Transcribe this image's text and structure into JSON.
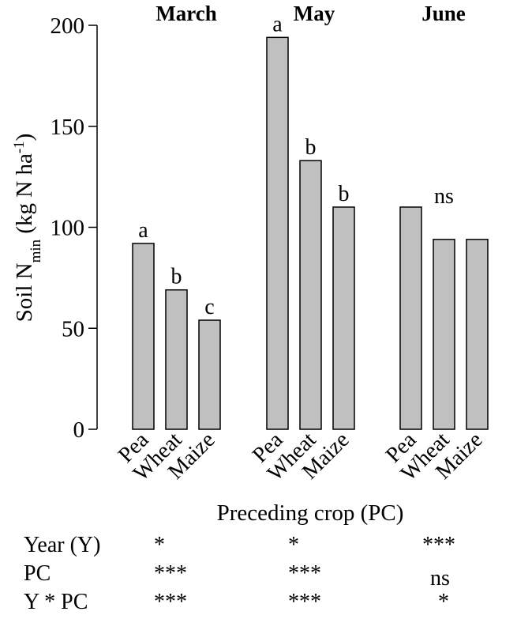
{
  "chart_data": {
    "type": "bar",
    "ylabel": "Soil N",
    "ylabel_sub": "min",
    "ylabel_unit_start": " (kg N ha",
    "ylabel_unit_sup": "-1",
    "ylabel_unit_end": ")",
    "xlabel": "Preceding crop (PC)",
    "ylim": [
      0,
      200
    ],
    "yticks": [
      0,
      50,
      100,
      150,
      200
    ],
    "groups": [
      {
        "title": "March",
        "bars": [
          {
            "crop": "Pea",
            "value": 92,
            "letter": "a"
          },
          {
            "crop": "Wheat",
            "value": 69,
            "letter": "b"
          },
          {
            "crop": "Maize",
            "value": 54,
            "letter": "c"
          }
        ]
      },
      {
        "title": "May",
        "bars": [
          {
            "crop": "Pea",
            "value": 194,
            "letter": "a"
          },
          {
            "crop": "Wheat",
            "value": 133,
            "letter": "b"
          },
          {
            "crop": "Maize",
            "value": 110,
            "letter": "b"
          }
        ]
      },
      {
        "title": "June",
        "group_label": "ns",
        "bars": [
          {
            "crop": "Pea",
            "value": 110,
            "letter": ""
          },
          {
            "crop": "Wheat",
            "value": 94,
            "letter": ""
          },
          {
            "crop": "Maize",
            "value": 94,
            "letter": ""
          }
        ]
      }
    ],
    "bar_color": "#c0c0c0"
  },
  "stats": [
    {
      "label": "Year (Y)",
      "march": "*",
      "may": "*",
      "june": "***"
    },
    {
      "label": "PC",
      "march": "***",
      "may": "***",
      "june": "ns"
    },
    {
      "label": "Y * PC",
      "march": "***",
      "may": "***",
      "june": "*"
    }
  ]
}
